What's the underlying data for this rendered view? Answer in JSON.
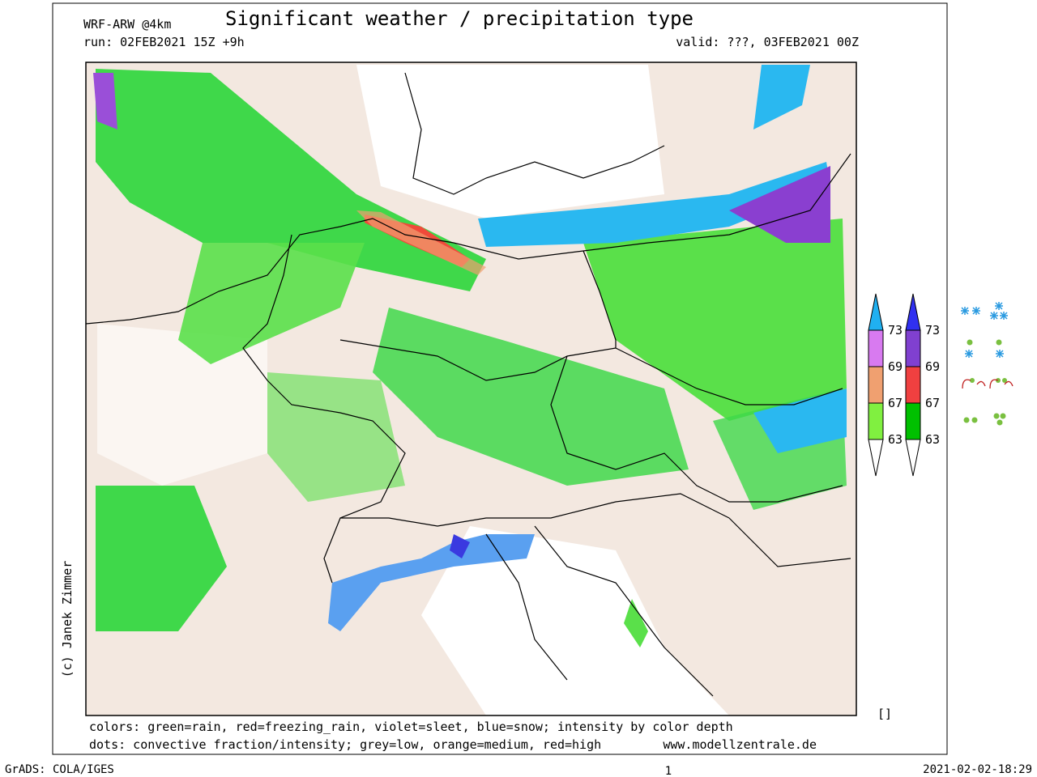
{
  "header": {
    "model": "WRF-ARW @4km",
    "title": "Significant weather / precipitation type",
    "run": "run: 02FEB2021 15Z +9h",
    "valid": "valid: ???, 03FEB2021 00Z"
  },
  "credit": "(c) Janek Zimmer",
  "legend": {
    "left_labels": [
      "73",
      "69",
      "67",
      "63"
    ],
    "right_labels": [
      "73",
      "69",
      "67",
      "63"
    ]
  },
  "footer": {
    "colors": "colors: green=rain, red=freezing_rain, violet=sleet, blue=snow; intensity by color depth",
    "dots": "dots: convective fraction/intensity;  grey=low, orange=medium, red=high",
    "url": "www.modellzentrale.de",
    "box": "[]"
  },
  "bottom": {
    "left": "GrADS: COLA/IGES",
    "center": "1",
    "right": "2021-02-02-18:29"
  }
}
